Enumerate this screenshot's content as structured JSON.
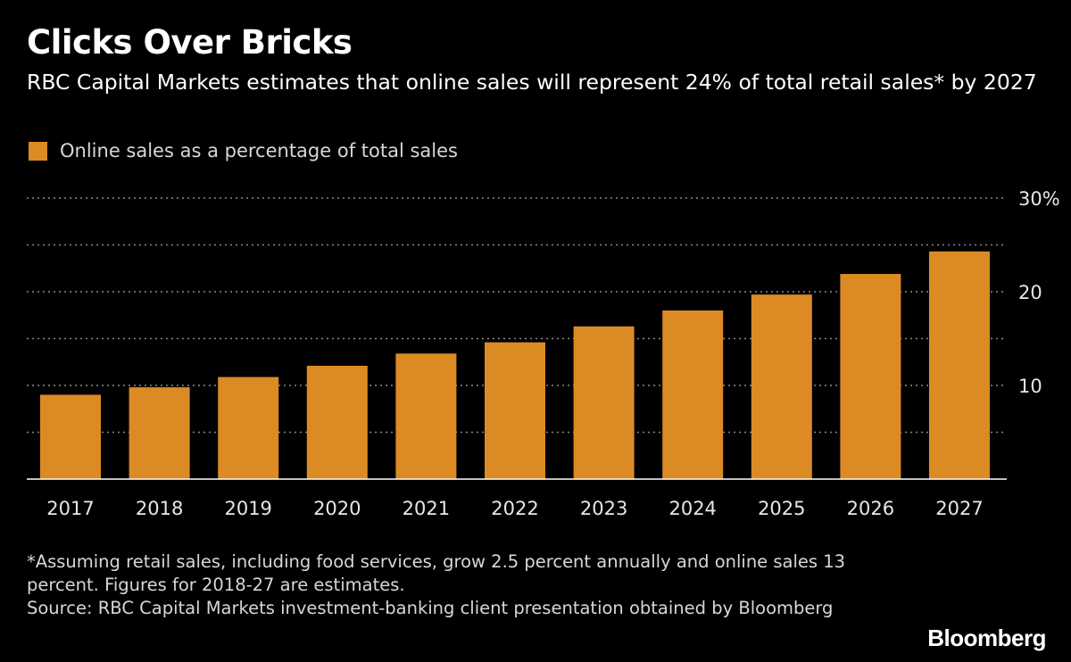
{
  "title": "Clicks Over Bricks",
  "subtitle": "RBC Capital Markets estimates that online sales will represent 24% of total retail sales* by 2027",
  "footnote": {
    "note": "*Assuming retail sales, including food services, grow 2.5 percent annually and online sales 13 percent. Figures for 2018-27 are estimates.",
    "source": "Source: RBC Capital Markets investment-banking client presentation obtained by Bloomberg"
  },
  "brand": "Bloomberg",
  "colors": {
    "bar": "#dc8b24",
    "background": "#000000",
    "grid": "#8a8a8a",
    "axis": "#ffffff"
  },
  "chart_data": {
    "type": "bar",
    "title": "Clicks Over Bricks",
    "legend": [
      "Online sales as a percentage of total sales"
    ],
    "legend_position": "top-left",
    "categories": [
      "2017",
      "2018",
      "2019",
      "2020",
      "2021",
      "2022",
      "2023",
      "2024",
      "2025",
      "2026",
      "2027"
    ],
    "series": [
      {
        "name": "Online sales as a percentage of total sales",
        "values": [
          9.0,
          9.8,
          10.9,
          12.1,
          13.4,
          14.6,
          16.3,
          18.0,
          19.7,
          21.9,
          24.3
        ]
      }
    ],
    "ylim": [
      0,
      30
    ],
    "yticks": [
      10,
      20,
      30
    ],
    "ytick_labels": [
      "10",
      "20",
      "30%"
    ],
    "minor_grid": [
      5,
      15,
      25
    ],
    "xlabel": "",
    "ylabel": "",
    "grid": true
  }
}
